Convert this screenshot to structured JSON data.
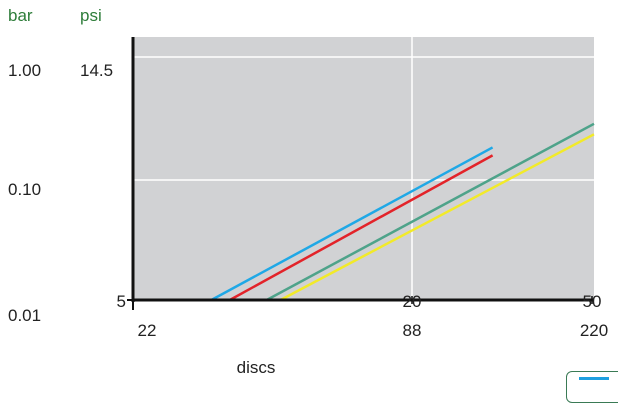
{
  "chart_data": {
    "type": "line",
    "title": "",
    "xlabel": "discs",
    "units_left": "bar",
    "units_right": "psi",
    "x_ticks_bottom": [
      "22",
      "88",
      "220"
    ],
    "x_ticks_inner": [
      "5",
      "20",
      "50"
    ],
    "y_ticks_left": [
      "1.00",
      "0.10",
      "0.01"
    ],
    "y_tick_inner_top": "14.5",
    "grid": true,
    "series": [
      {
        "color": "#1fa8e6",
        "start_frac": [
          0.17,
          0.0
        ],
        "end_frac": [
          0.78,
          0.58
        ]
      },
      {
        "color": "#e32329",
        "start_frac": [
          0.21,
          0.0
        ],
        "end_frac": [
          0.78,
          0.55
        ]
      },
      {
        "color": "#4ea38a",
        "start_frac": [
          0.29,
          0.0
        ],
        "end_frac": [
          1.0,
          0.67
        ]
      },
      {
        "color": "#f2ea29",
        "start_frac": [
          0.32,
          0.0
        ],
        "end_frac": [
          1.0,
          0.63
        ]
      }
    ]
  }
}
